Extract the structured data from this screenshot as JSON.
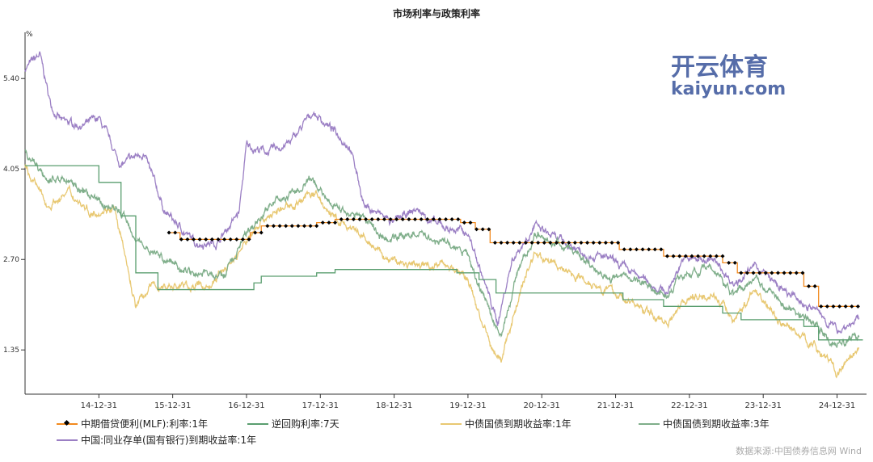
{
  "chart_data": {
    "type": "line",
    "title": "市场利率与政策利率",
    "ylabel": "%",
    "yticks": [
      5.4,
      4.05,
      2.7,
      1.35
    ],
    "ylim": [
      0.69,
      6.09
    ],
    "xlim": [
      2014.0,
      2025.29
    ],
    "xticks": [
      {
        "label": "14-12-31",
        "x": 2015.0
      },
      {
        "label": "15-12-31",
        "x": 2016.0
      },
      {
        "label": "16-12-31",
        "x": 2017.0
      },
      {
        "label": "17-12-31",
        "x": 2018.0
      },
      {
        "label": "18-12-31",
        "x": 2019.0
      },
      {
        "label": "19-12-31",
        "x": 2020.0
      },
      {
        "label": "20-12-31",
        "x": 2021.0
      },
      {
        "label": "21-12-31",
        "x": 2022.0
      },
      {
        "label": "22-12-31",
        "x": 2023.0
      },
      {
        "label": "23-12-31",
        "x": 2024.0
      },
      {
        "label": "24-12-31",
        "x": 2025.0
      }
    ],
    "legend_position": "bottom",
    "series": [
      {
        "name": "中期借贷便利(MLF):利率:1年",
        "color": "#f28a1e",
        "style": "step",
        "markers": true,
        "points": [
          [
            2015.95,
            3.1
          ],
          [
            2016.1,
            3.0
          ],
          [
            2017.05,
            3.1
          ],
          [
            2017.2,
            3.2
          ],
          [
            2017.95,
            3.25
          ],
          [
            2018.2,
            3.3
          ],
          [
            2019.9,
            3.25
          ],
          [
            2020.1,
            3.15
          ],
          [
            2020.3,
            2.95
          ],
          [
            2022.05,
            2.85
          ],
          [
            2022.65,
            2.75
          ],
          [
            2023.45,
            2.65
          ],
          [
            2023.65,
            2.5
          ],
          [
            2024.55,
            2.3
          ],
          [
            2024.75,
            2.0
          ],
          [
            2025.3,
            2.0
          ]
        ]
      },
      {
        "name": "逆回购利率:7天",
        "color": "#5a9e6f",
        "style": "step",
        "points": [
          [
            2014.0,
            4.1
          ],
          [
            2015.0,
            3.85
          ],
          [
            2015.3,
            3.35
          ],
          [
            2015.5,
            2.5
          ],
          [
            2015.8,
            2.25
          ],
          [
            2017.1,
            2.35
          ],
          [
            2017.2,
            2.45
          ],
          [
            2017.95,
            2.5
          ],
          [
            2018.2,
            2.55
          ],
          [
            2019.85,
            2.5
          ],
          [
            2020.15,
            2.4
          ],
          [
            2020.38,
            2.2
          ],
          [
            2022.1,
            2.1
          ],
          [
            2022.65,
            2.0
          ],
          [
            2023.45,
            1.9
          ],
          [
            2023.7,
            1.8
          ],
          [
            2024.55,
            1.7
          ],
          [
            2024.75,
            1.5
          ],
          [
            2025.35,
            1.5
          ]
        ]
      },
      {
        "name": "中债国债到期收益率:1年",
        "color": "#e8c872",
        "style": "noisy",
        "points": [
          [
            2014.0,
            4.1
          ],
          [
            2014.3,
            3.5
          ],
          [
            2014.6,
            3.7
          ],
          [
            2014.9,
            3.4
          ],
          [
            2015.2,
            3.5
          ],
          [
            2015.5,
            2.0
          ],
          [
            2015.7,
            2.3
          ],
          [
            2016.0,
            2.3
          ],
          [
            2016.5,
            2.3
          ],
          [
            2016.9,
            2.8
          ],
          [
            2017.2,
            3.3
          ],
          [
            2017.6,
            3.5
          ],
          [
            2017.9,
            3.7
          ],
          [
            2018.2,
            3.3
          ],
          [
            2018.6,
            3.0
          ],
          [
            2018.9,
            2.7
          ],
          [
            2019.3,
            2.6
          ],
          [
            2019.7,
            2.65
          ],
          [
            2020.0,
            2.4
          ],
          [
            2020.3,
            1.4
          ],
          [
            2020.45,
            1.2
          ],
          [
            2020.7,
            2.2
          ],
          [
            2020.9,
            2.8
          ],
          [
            2021.2,
            2.6
          ],
          [
            2021.6,
            2.4
          ],
          [
            2021.9,
            2.25
          ],
          [
            2022.3,
            2.0
          ],
          [
            2022.7,
            1.75
          ],
          [
            2022.9,
            2.1
          ],
          [
            2023.3,
            2.2
          ],
          [
            2023.6,
            1.8
          ],
          [
            2023.9,
            2.25
          ],
          [
            2024.2,
            1.8
          ],
          [
            2024.6,
            1.5
          ],
          [
            2024.9,
            1.2
          ],
          [
            2025.0,
            1.0
          ],
          [
            2025.3,
            1.3
          ]
        ]
      },
      {
        "name": "中债国债到期收益率:3年",
        "color": "#7fae8a",
        "style": "noisy",
        "points": [
          [
            2014.0,
            4.3
          ],
          [
            2014.3,
            3.9
          ],
          [
            2014.6,
            3.9
          ],
          [
            2014.9,
            3.6
          ],
          [
            2015.3,
            3.4
          ],
          [
            2015.6,
            2.9
          ],
          [
            2015.9,
            2.7
          ],
          [
            2016.3,
            2.5
          ],
          [
            2016.7,
            2.45
          ],
          [
            2016.9,
            2.9
          ],
          [
            2017.3,
            3.5
          ],
          [
            2017.9,
            3.85
          ],
          [
            2018.2,
            3.5
          ],
          [
            2018.6,
            3.3
          ],
          [
            2018.9,
            3.0
          ],
          [
            2019.3,
            3.1
          ],
          [
            2019.7,
            2.95
          ],
          [
            2020.0,
            2.75
          ],
          [
            2020.3,
            1.9
          ],
          [
            2020.45,
            1.55
          ],
          [
            2020.7,
            2.6
          ],
          [
            2020.9,
            3.05
          ],
          [
            2021.3,
            2.9
          ],
          [
            2021.7,
            2.6
          ],
          [
            2021.9,
            2.45
          ],
          [
            2022.3,
            2.4
          ],
          [
            2022.7,
            2.15
          ],
          [
            2022.9,
            2.5
          ],
          [
            2023.3,
            2.55
          ],
          [
            2023.6,
            2.2
          ],
          [
            2023.9,
            2.45
          ],
          [
            2024.3,
            2.0
          ],
          [
            2024.7,
            1.75
          ],
          [
            2024.95,
            1.4
          ],
          [
            2025.3,
            1.55
          ]
        ]
      },
      {
        "name": "中国:同业存单(国有银行)到期收益率:1年",
        "color": "#9b7fc4",
        "style": "noisy",
        "points": [
          [
            2014.0,
            5.55
          ],
          [
            2014.2,
            5.75
          ],
          [
            2014.35,
            5.0
          ],
          [
            2014.5,
            4.75
          ],
          [
            2014.8,
            4.7
          ],
          [
            2015.0,
            4.8
          ],
          [
            2015.3,
            4.1
          ],
          [
            2015.6,
            4.3
          ],
          [
            2015.9,
            3.4
          ],
          [
            2016.3,
            2.95
          ],
          [
            2016.6,
            2.95
          ],
          [
            2016.9,
            3.4
          ],
          [
            2017.0,
            4.4
          ],
          [
            2017.3,
            4.3
          ],
          [
            2017.6,
            4.45
          ],
          [
            2017.9,
            4.9
          ],
          [
            2018.2,
            4.6
          ],
          [
            2018.4,
            4.4
          ],
          [
            2018.6,
            3.5
          ],
          [
            2019.0,
            3.25
          ],
          [
            2019.3,
            3.45
          ],
          [
            2019.6,
            3.2
          ],
          [
            2020.0,
            3.1
          ],
          [
            2020.3,
            2.1
          ],
          [
            2020.4,
            1.75
          ],
          [
            2020.6,
            2.7
          ],
          [
            2020.9,
            3.2
          ],
          [
            2021.2,
            3.0
          ],
          [
            2021.6,
            2.8
          ],
          [
            2021.9,
            2.7
          ],
          [
            2022.3,
            2.45
          ],
          [
            2022.7,
            2.2
          ],
          [
            2022.9,
            2.7
          ],
          [
            2023.3,
            2.7
          ],
          [
            2023.6,
            2.35
          ],
          [
            2023.9,
            2.6
          ],
          [
            2024.3,
            2.2
          ],
          [
            2024.7,
            1.95
          ],
          [
            2025.0,
            1.65
          ],
          [
            2025.3,
            1.8
          ]
        ]
      }
    ]
  },
  "source": "数据来源:中国债券信息网 Wind",
  "watermark": {
    "brand": "开云体育",
    "site": "kaiyun.com"
  }
}
